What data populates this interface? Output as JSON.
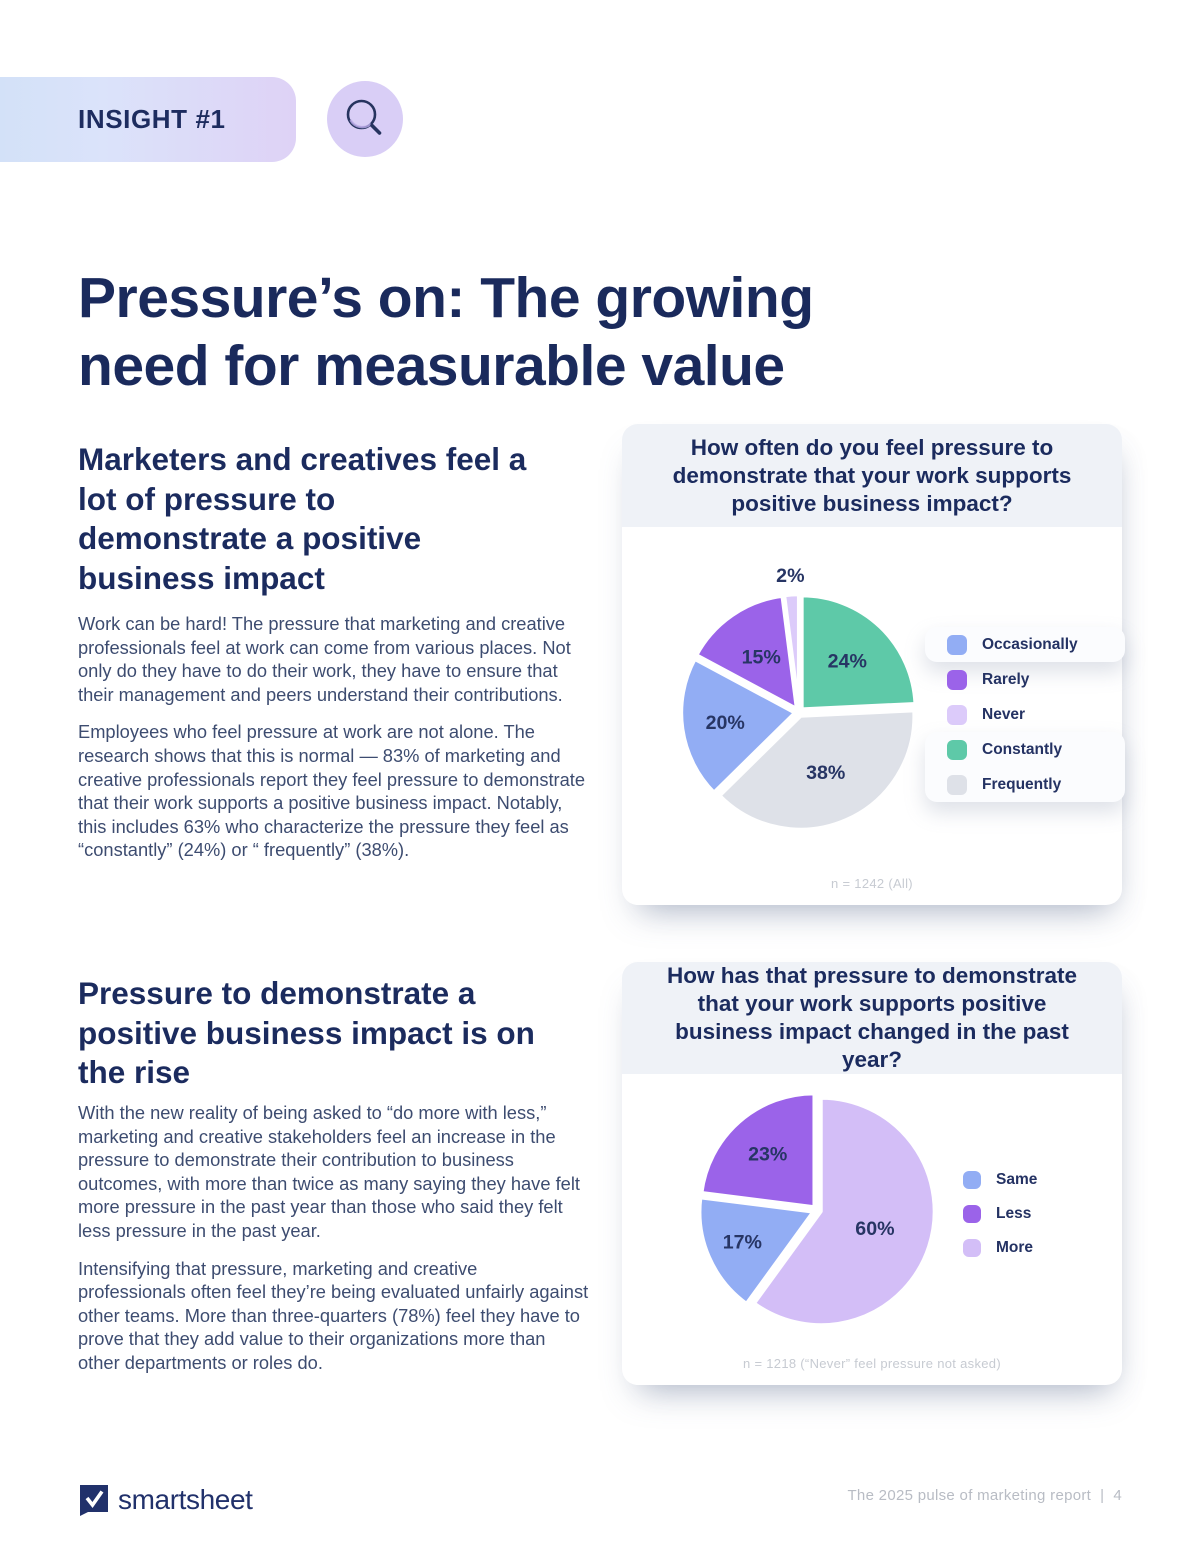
{
  "badge": {
    "label": "INSIGHT #1"
  },
  "page_title": "Pressure’s on: The growing need for measurable value",
  "sections": [
    {
      "heading": "Marketers and creatives feel a lot of pressure to demonstrate a positive business impact",
      "paragraphs": [
        "Work can be hard! The pressure that marketing and creative professionals feel at work can come from various places. Not only do they have to do their work, they have to ensure that their management and peers understand their contributions.",
        "Employees who feel pressure at work are not alone. The research shows that this is normal — 83% of marketing and creative professionals report they feel pressure to demonstrate that their work supports a positive business impact. Notably, this includes 63% who characterize the pressure they feel as “constantly” (24%) or “ frequently” (38%)."
      ]
    },
    {
      "heading": "Pressure to demonstrate a positive business impact is on the rise",
      "paragraphs": [
        "With the new reality of being asked to “do more with less,” marketing and creative stakeholders feel an increase in the pressure to demonstrate their contribution to business outcomes, with more than twice as many saying they have felt more pressure in the past year than those who said they felt less pressure in the past year.",
        "Intensifying that pressure, marketing and creative professionals often feel they’re being evaluated unfairly against other teams. More than three-quarters (78%) feel they have to prove that they add value to their organizations more than other departments or roles do."
      ]
    }
  ],
  "chart_data": [
    {
      "type": "pie",
      "title": "How often do you feel pressure to demonstrate that your work supports positive business impact?",
      "slices": [
        {
          "label": "Constantly",
          "value": 24,
          "color": "#5ec9a8",
          "data_label": "24%"
        },
        {
          "label": "Frequently",
          "value": 38,
          "color": "#dee1e8",
          "data_label": "38%"
        },
        {
          "label": "Occasionally",
          "value": 20,
          "color": "#92adf4",
          "data_label": "20%"
        },
        {
          "label": "Rarely",
          "value": 15,
          "color": "#9b63e9",
          "data_label": "15%"
        },
        {
          "label": "Never",
          "value": 2,
          "color": "#dccbfa",
          "data_label": "2%"
        }
      ],
      "legend_order": [
        "Occasionally",
        "Rarely",
        "Never",
        "Constantly",
        "Frequently"
      ],
      "legend_position": "right",
      "footnote": "n = 1242 (All)"
    },
    {
      "type": "pie",
      "title": "How has that pressure to demonstrate that your work supports positive business impact changed in the past year?",
      "slices": [
        {
          "label": "More",
          "value": 60,
          "color": "#d3bef7",
          "data_label": "60%"
        },
        {
          "label": "Same",
          "value": 17,
          "color": "#92adf4",
          "data_label": "17%"
        },
        {
          "label": "Less",
          "value": 23,
          "color": "#9b63e9",
          "data_label": "23%"
        }
      ],
      "legend_order": [
        "Same",
        "Less",
        "More"
      ],
      "legend_position": "right",
      "footnote": "n = 1218 (“Never” feel pressure not asked)"
    }
  ],
  "footer": {
    "brand": "smartsheet",
    "right_text": "The 2025 pulse of marketing report",
    "separator": "|",
    "page_number": "4"
  },
  "colors": {
    "heading_navy": "#1a2a5c",
    "body_text": "#3d4c70",
    "card_band": "#eff2f7",
    "badge_gradient_start": "#d3e1f8",
    "badge_gradient_end": "#ded2f6",
    "footnote_gray": "#c7cbd2"
  }
}
